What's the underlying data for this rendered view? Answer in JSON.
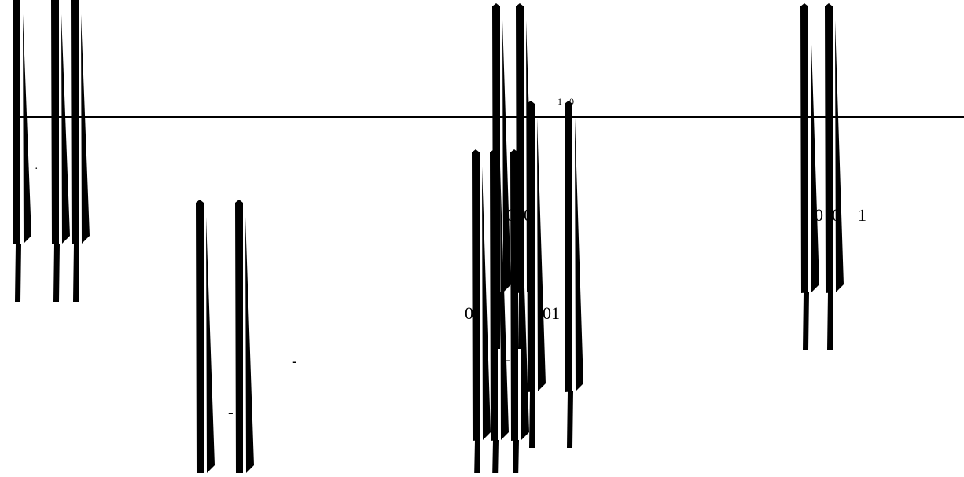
{
  "colors": {
    "background": "#ffffff",
    "ink": "#000000"
  },
  "labels": {
    "one_zero": "1   0",
    "zero_zero_a": "0  0",
    "zero_zero_one": "0  0    1",
    "zero_left": "0",
    "zero_one": "01",
    "dash_a": "-",
    "dash_b": "-",
    "dash_c": "-",
    "dots": ".  .",
    "zero_small": "0"
  }
}
